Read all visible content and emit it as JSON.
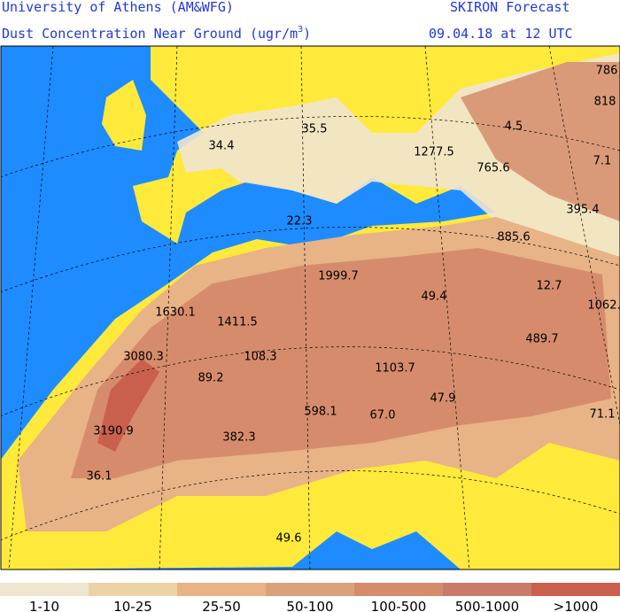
{
  "header": {
    "institution": "University of Athens (AM&WFG)",
    "product": "SKIRON Forecast",
    "title": "Dust Concentration Near Ground (ugr/m",
    "title_superscript": "3",
    "title_close": ")",
    "valid_time": "09.04.18 at 12 UTC"
  },
  "map_labels": [
    "786",
    "818",
    "4.5",
    "1277.5",
    "7.1",
    "765.6",
    "35.5",
    "34.4",
    "395.4",
    "22.3",
    "885.6",
    "1999.7",
    "12.7",
    "1062.",
    "49.4",
    "1630.1",
    "1411.5",
    "489.7",
    "3080.3",
    "108.3",
    "1103.7",
    "89.2",
    "47.9",
    "598.1",
    "67.0",
    "71.1",
    "3190.9",
    "382.3",
    "36.1",
    "49.6"
  ],
  "legend": [
    {
      "label": "1-10",
      "color": "#f0e6d0"
    },
    {
      "label": "10-25",
      "color": "#ebd3a5"
    },
    {
      "label": "25-50",
      "color": "#e8b387"
    },
    {
      "label": "50-100",
      "color": "#daa27a"
    },
    {
      "label": "100-500",
      "color": "#d68c6c"
    },
    {
      "label": "500-1000",
      "color": "#c97a68"
    },
    {
      "label": ">1000",
      "color": "#c9604e"
    }
  ]
}
